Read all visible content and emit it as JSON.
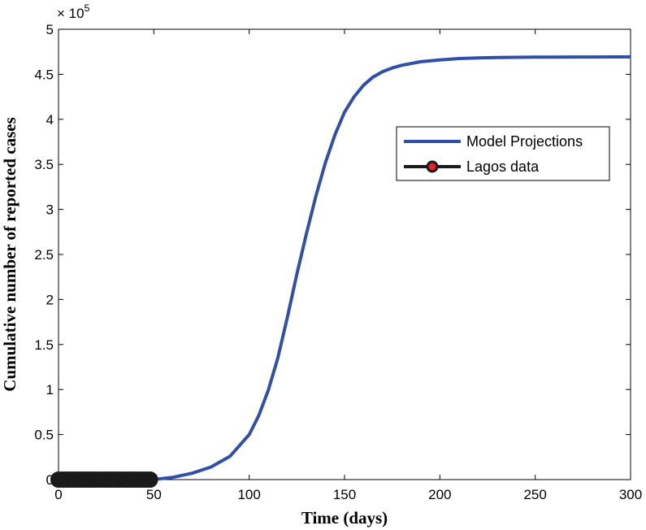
{
  "chart_data": {
    "type": "line",
    "xlabel": "Time (days)",
    "ylabel": "Cumulative number of reported cases",
    "xlim": [
      0,
      300
    ],
    "ylim": [
      0,
      500000
    ],
    "x_ticks": [
      "0",
      "50",
      "100",
      "150",
      "200",
      "250",
      "300"
    ],
    "y_ticks": [
      "0",
      "0.5",
      "1",
      "1.5",
      "2",
      "2.5",
      "3",
      "3.5",
      "4",
      "4.5",
      "5"
    ],
    "y_multiplier": {
      "base": "× 10",
      "exponent": "5"
    },
    "grid": false,
    "legend_position": "top-right",
    "colors": {
      "model": "#3050a8",
      "data": "#1a1a1a",
      "data_marker_face": "#e8202a"
    },
    "series": [
      {
        "name": "Model Projections",
        "kind": "line",
        "x": [
          0,
          10,
          20,
          30,
          40,
          50,
          60,
          70,
          80,
          90,
          100,
          105,
          110,
          115,
          120,
          125,
          130,
          135,
          140,
          145,
          150,
          155,
          160,
          165,
          170,
          175,
          180,
          190,
          200,
          210,
          220,
          230,
          240,
          250,
          260,
          270,
          280,
          290,
          300
        ],
        "y": [
          0,
          0,
          0,
          0,
          0,
          100,
          2500,
          7000,
          14000,
          26000,
          50000,
          71000,
          99000,
          135000,
          180000,
          228000,
          273000,
          315000,
          352000,
          383000,
          408000,
          425000,
          438000,
          447000,
          453000,
          457000,
          460000,
          464000,
          466000,
          467500,
          468200,
          468600,
          468900,
          469000,
          469100,
          469200,
          469200,
          469300,
          469300
        ]
      },
      {
        "name": "Lagos data",
        "kind": "line-markers",
        "x": [
          0,
          2,
          4,
          6,
          8,
          10,
          12,
          14,
          16,
          18,
          20,
          22,
          24,
          26,
          28,
          30,
          32,
          34,
          36,
          38,
          40,
          42,
          44,
          46,
          48
        ],
        "y": [
          0,
          0,
          0,
          0,
          0,
          0,
          0,
          0,
          0,
          0,
          0,
          0,
          0,
          0,
          0,
          0,
          0,
          0,
          0,
          0,
          0,
          0,
          0,
          0,
          0
        ]
      }
    ]
  }
}
